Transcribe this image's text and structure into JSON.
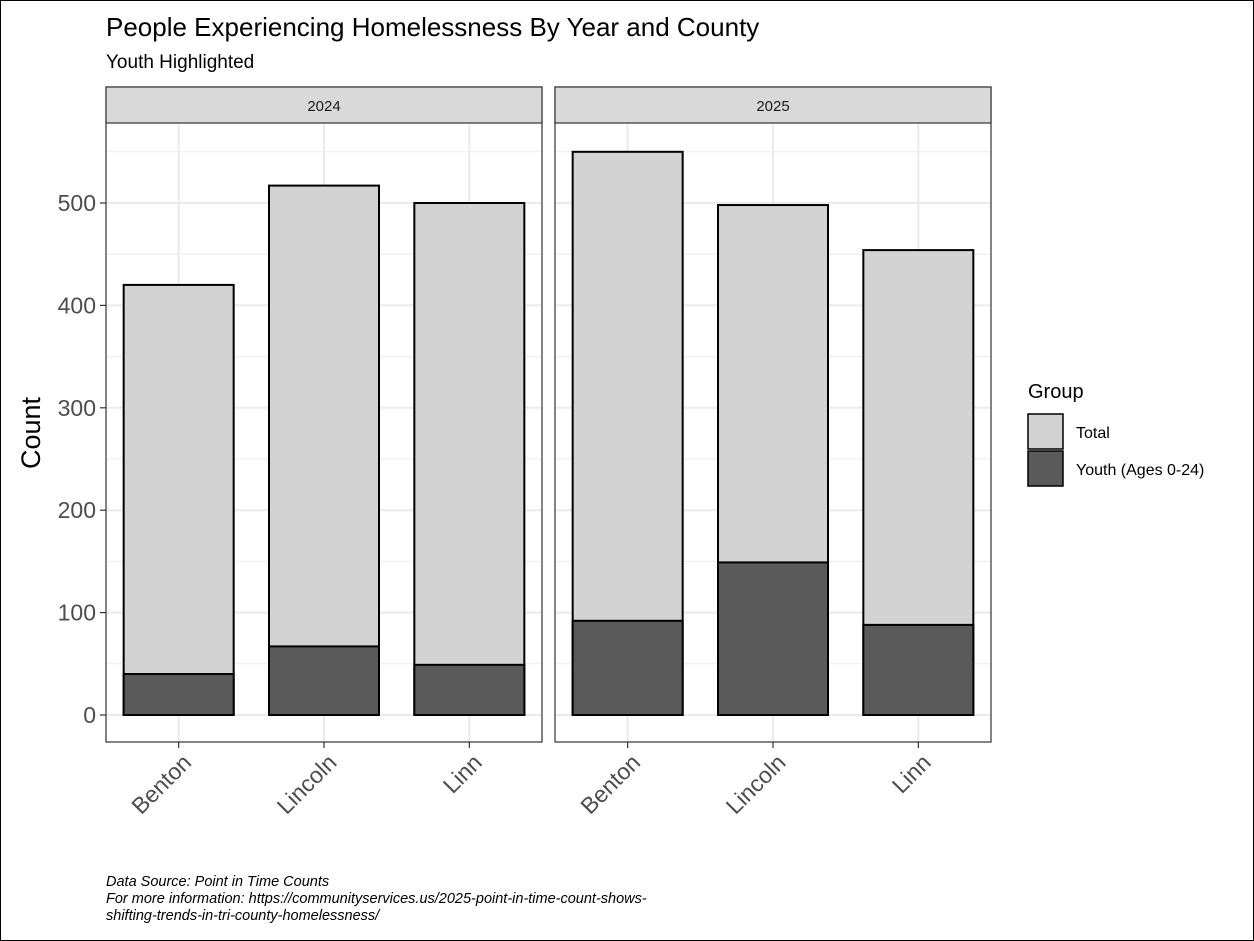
{
  "chart_data": {
    "type": "bar",
    "title": "People Experiencing Homelessness By Year and County",
    "subtitle": "Youth Highlighted",
    "ylabel": "Count",
    "xlabel": "",
    "ylim": [
      0,
      580
    ],
    "yticks": [
      0,
      100,
      200,
      300,
      400,
      500
    ],
    "grid": true,
    "legend": {
      "title": "Group",
      "placement": "right",
      "entries": [
        {
          "label": "Total",
          "color": "#d3d3d3"
        },
        {
          "label": "Youth (Ages 0-24)",
          "color": "#5a5a5a"
        }
      ]
    },
    "categories": [
      "Benton",
      "Lincoln",
      "Linn"
    ],
    "panels": [
      {
        "label": "2024",
        "series": [
          {
            "name": "Total",
            "values": [
              420,
              517,
              500
            ]
          },
          {
            "name": "Youth (Ages 0-24)",
            "values": [
              40,
              67,
              49
            ]
          }
        ]
      },
      {
        "label": "2025",
        "series": [
          {
            "name": "Total",
            "values": [
              550,
              498,
              454
            ]
          },
          {
            "name": "Youth (Ages 0-24)",
            "values": [
              92,
              149,
              88
            ]
          }
        ]
      }
    ]
  },
  "caption": {
    "line1": "Data Source: Point in Time Counts",
    "line2": "For more information: https://communityservices.us/2025-point-in-time-count-shows-",
    "line3": "shifting-trends-in-tri-county-homelessness/"
  },
  "colors": {
    "total": "#d3d3d3",
    "youth": "#5a5a5a",
    "strip": "#d9d9d9",
    "grid": "#ebebeb",
    "outline": "#000000"
  }
}
